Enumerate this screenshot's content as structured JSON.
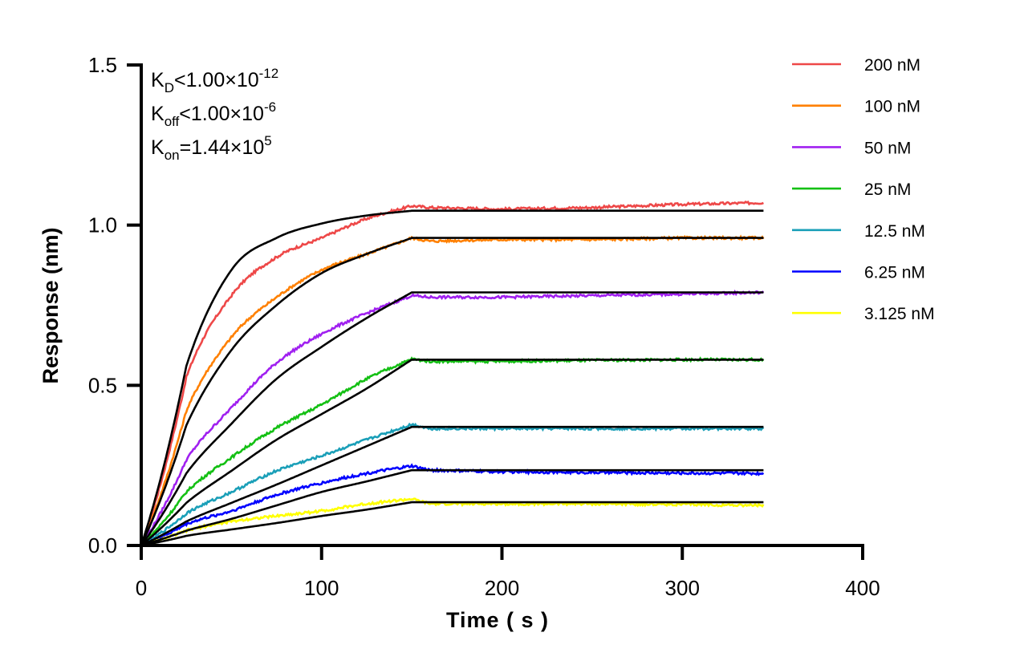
{
  "chart_data": {
    "type": "line",
    "xlabel": "Time ( s )",
    "ylabel": "Response (nm)",
    "xlim": [
      0,
      400
    ],
    "ylim": [
      0,
      1.5
    ],
    "x_ticks": [
      "0",
      "100",
      "200",
      "300",
      "400"
    ],
    "y_ticks": [
      "0.0",
      "0.5",
      "1.0",
      "1.5"
    ],
    "grid": false,
    "legend_position": "top-right",
    "annotations": {
      "kd": {
        "k": "K",
        "sub": "D",
        "rel": "<1.00×10",
        "sup": "-12"
      },
      "koff": {
        "k": "K",
        "sub": "off",
        "rel": "<1.00×10",
        "sup": "-6"
      },
      "kon": {
        "k": "K",
        "sub": "on",
        "rel": "=1.44×10",
        "sup": "5"
      }
    },
    "fit_color": "#000000",
    "x": [
      0,
      25,
      50,
      75,
      100,
      125,
      150,
      160,
      200,
      250,
      300,
      345
    ],
    "series": [
      {
        "name": "200 nM",
        "color": "#ee4848",
        "values": [
          0,
          0.525,
          0.78,
          0.9,
          0.96,
          1.02,
          1.06,
          1.055,
          1.05,
          1.055,
          1.065,
          1.07
        ],
        "fit": [
          0,
          0.56,
          0.86,
          0.96,
          1.005,
          1.03,
          1.045,
          1.045,
          1.045,
          1.045,
          1.045,
          1.045
        ]
      },
      {
        "name": "100 nM",
        "color": "#ff8000",
        "values": [
          0,
          0.42,
          0.65,
          0.775,
          0.86,
          0.91,
          0.96,
          0.95,
          0.955,
          0.955,
          0.96,
          0.96
        ],
        "fit": [
          0,
          0.375,
          0.61,
          0.75,
          0.85,
          0.91,
          0.96,
          0.96,
          0.96,
          0.96,
          0.96,
          0.96
        ]
      },
      {
        "name": "50 nM",
        "color": "#a020f0",
        "values": [
          0,
          0.267,
          0.43,
          0.57,
          0.66,
          0.725,
          0.78,
          0.775,
          0.775,
          0.78,
          0.785,
          0.79
        ],
        "fit": [
          0,
          0.225,
          0.38,
          0.52,
          0.62,
          0.71,
          0.79,
          0.79,
          0.79,
          0.79,
          0.79,
          0.79
        ]
      },
      {
        "name": "25 nM",
        "color": "#14c014",
        "values": [
          0,
          0.167,
          0.275,
          0.367,
          0.44,
          0.52,
          0.582,
          0.575,
          0.575,
          0.578,
          0.58,
          0.58
        ],
        "fit": [
          0,
          0.133,
          0.233,
          0.33,
          0.41,
          0.49,
          0.58,
          0.58,
          0.58,
          0.58,
          0.58,
          0.58
        ]
      },
      {
        "name": "12.5 nM",
        "color": "#1a9fb8",
        "values": [
          0,
          0.1,
          0.167,
          0.233,
          0.28,
          0.33,
          0.378,
          0.365,
          0.365,
          0.365,
          0.365,
          0.365
        ],
        "fit": [
          0,
          0.075,
          0.133,
          0.19,
          0.25,
          0.31,
          0.37,
          0.37,
          0.37,
          0.37,
          0.37,
          0.37
        ]
      },
      {
        "name": "6.25 nM",
        "color": "#0000ff",
        "values": [
          0,
          0.067,
          0.108,
          0.158,
          0.195,
          0.225,
          0.248,
          0.235,
          0.23,
          0.228,
          0.226,
          0.225
        ],
        "fit": [
          0,
          0.046,
          0.083,
          0.125,
          0.167,
          0.2,
          0.235,
          0.235,
          0.235,
          0.235,
          0.235,
          0.235
        ]
      },
      {
        "name": "3.125 nM",
        "color": "#ffff00",
        "values": [
          0,
          0.046,
          0.075,
          0.092,
          0.108,
          0.13,
          0.145,
          0.13,
          0.13,
          0.13,
          0.128,
          0.125
        ],
        "fit": [
          0,
          0.03,
          0.05,
          0.07,
          0.092,
          0.112,
          0.135,
          0.135,
          0.135,
          0.135,
          0.135,
          0.135
        ]
      }
    ]
  }
}
